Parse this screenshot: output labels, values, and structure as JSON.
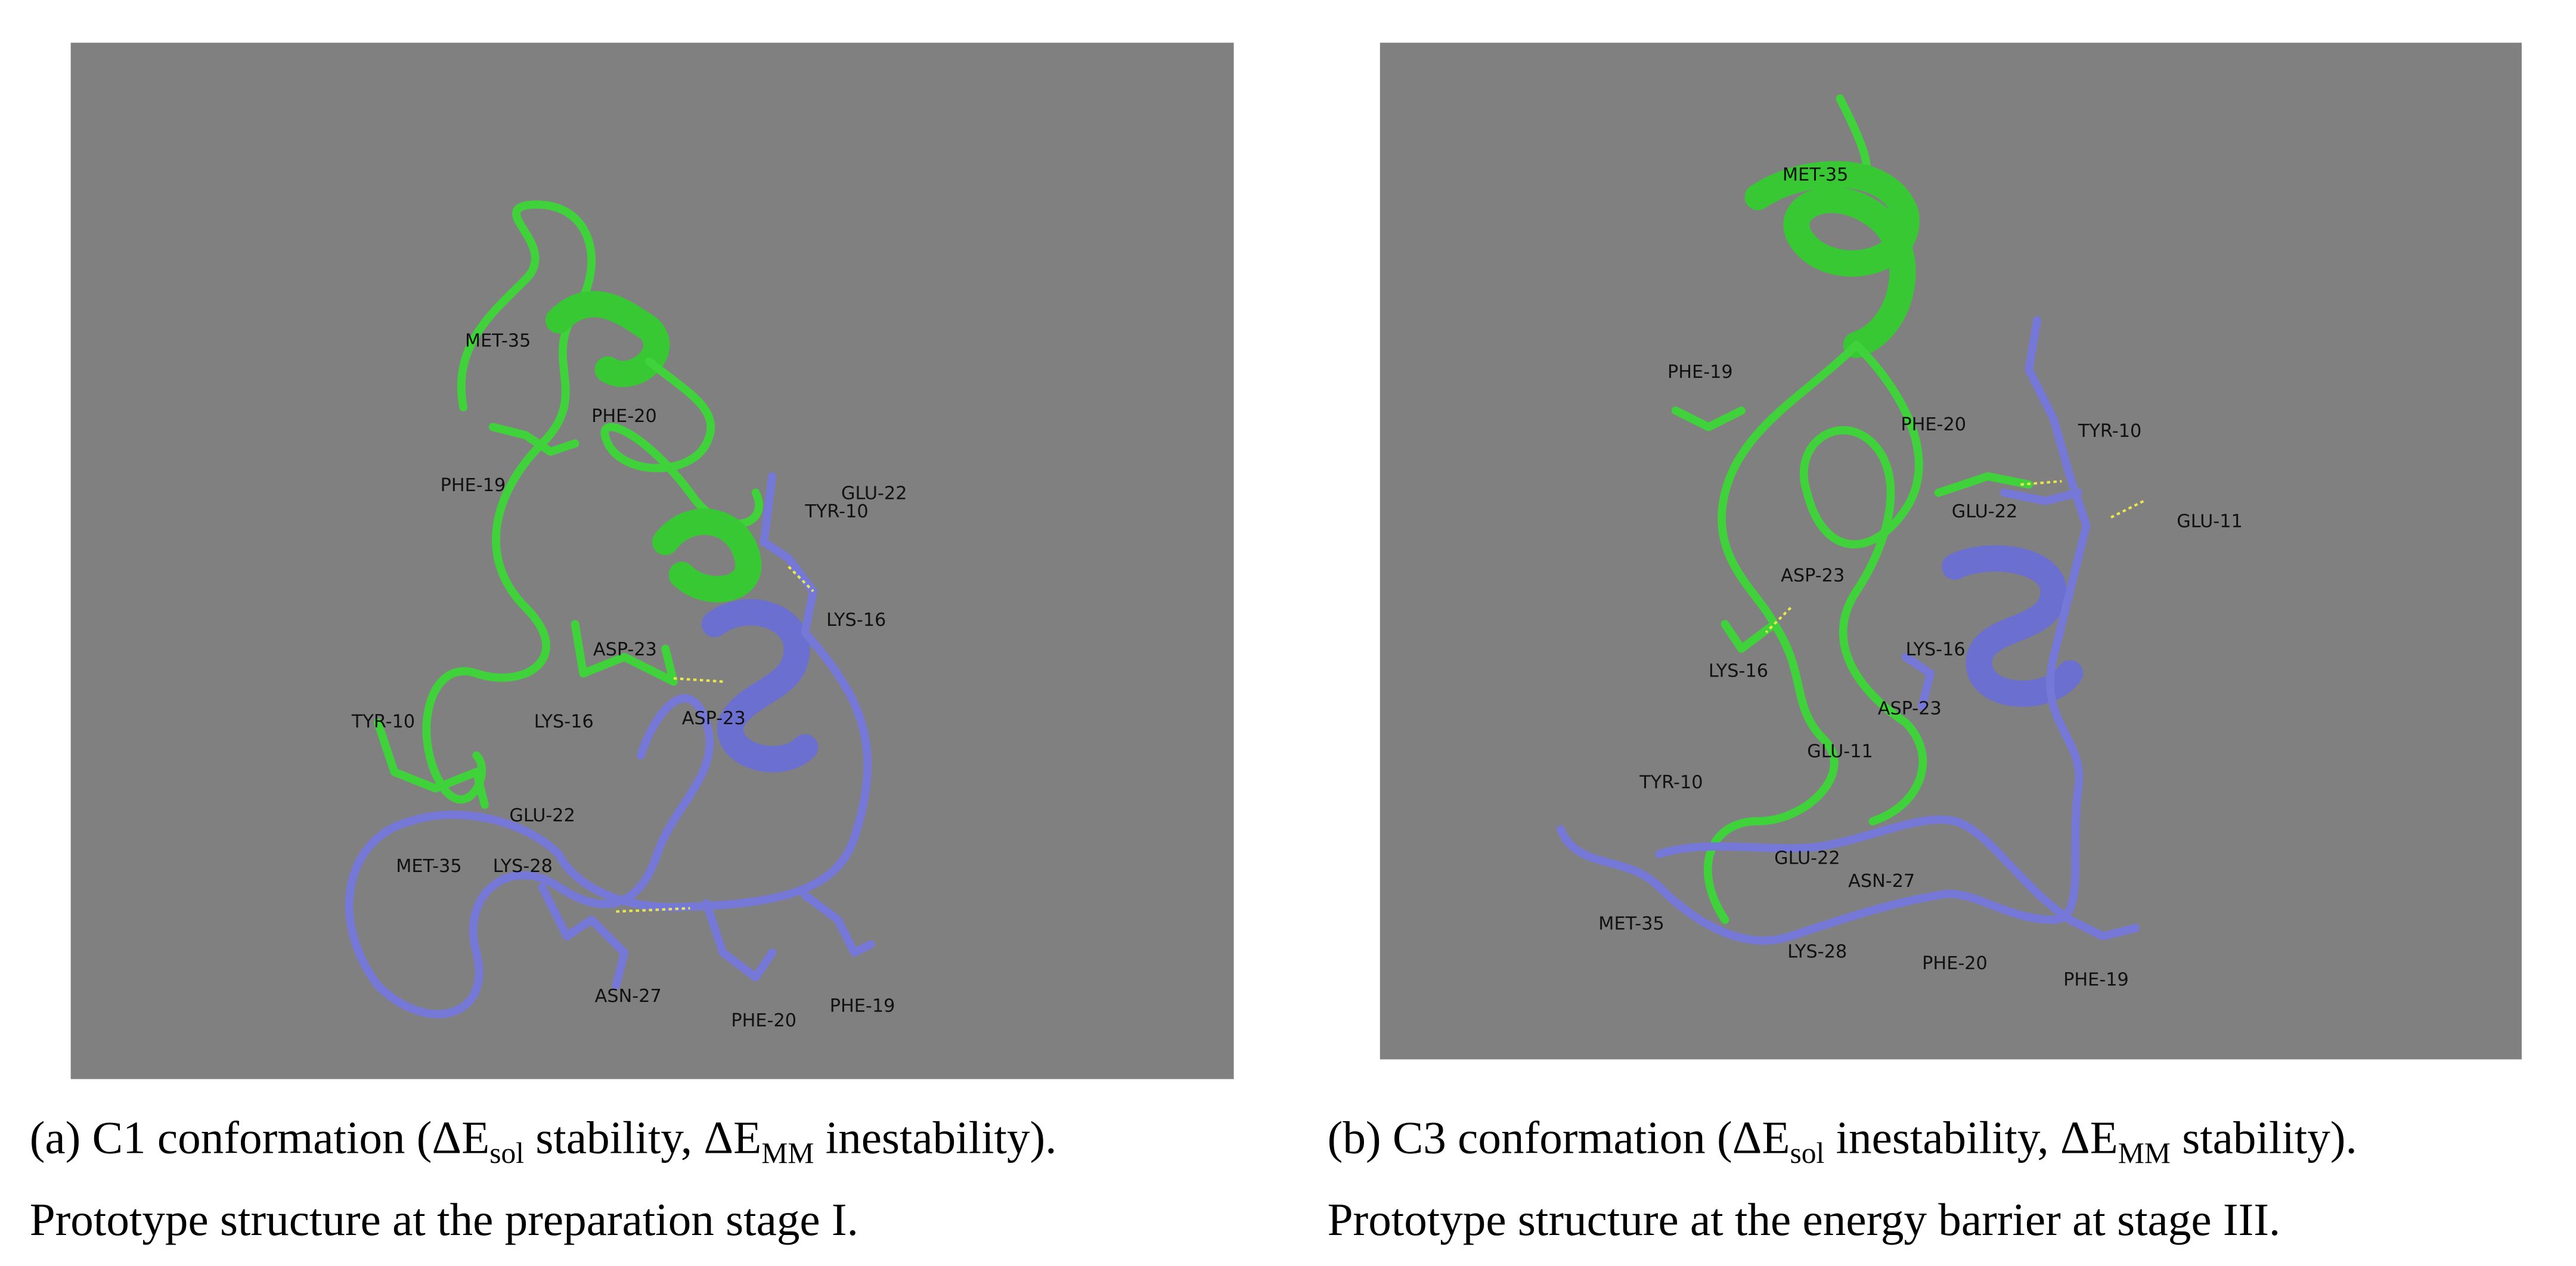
{
  "figure": {
    "panels": [
      {
        "labels": [
          "MET-35",
          "PHE-20",
          "PHE-19",
          "GLU-22",
          "TYR-10",
          "LYS-16",
          "ASP-23",
          "LYS-16",
          "ASP-23",
          "TYR-10",
          "GLU-22",
          "MET-35",
          "LYS-28",
          "ASN-27",
          "PHE-20",
          "PHE-19"
        ],
        "caption": {
          "line1": [
            "(a) C1 conformation (ΔE",
            "sol",
            " stability, ΔE",
            "MM",
            " inestability)."
          ],
          "line2": "Prototype structure at the preparation stage I."
        }
      },
      {
        "labels": [
          "MET-35",
          "PHE-19",
          "PHE-20",
          "TYR-10",
          "GLU-22",
          "GLU-11",
          "ASP-23",
          "LYS-16",
          "LYS-16",
          "ASP-23",
          "GLU-11",
          "TYR-10",
          "GLU-22",
          "ASN-27",
          "MET-35",
          "LYS-28",
          "PHE-20",
          "PHE-19"
        ],
        "caption": {
          "line1": [
            "(b) C3 conformation (ΔE",
            "sol",
            " inestability, ΔE",
            "MM",
            " stability)."
          ],
          "line2": "Prototype structure at the energy barrier at stage III."
        }
      }
    ]
  }
}
